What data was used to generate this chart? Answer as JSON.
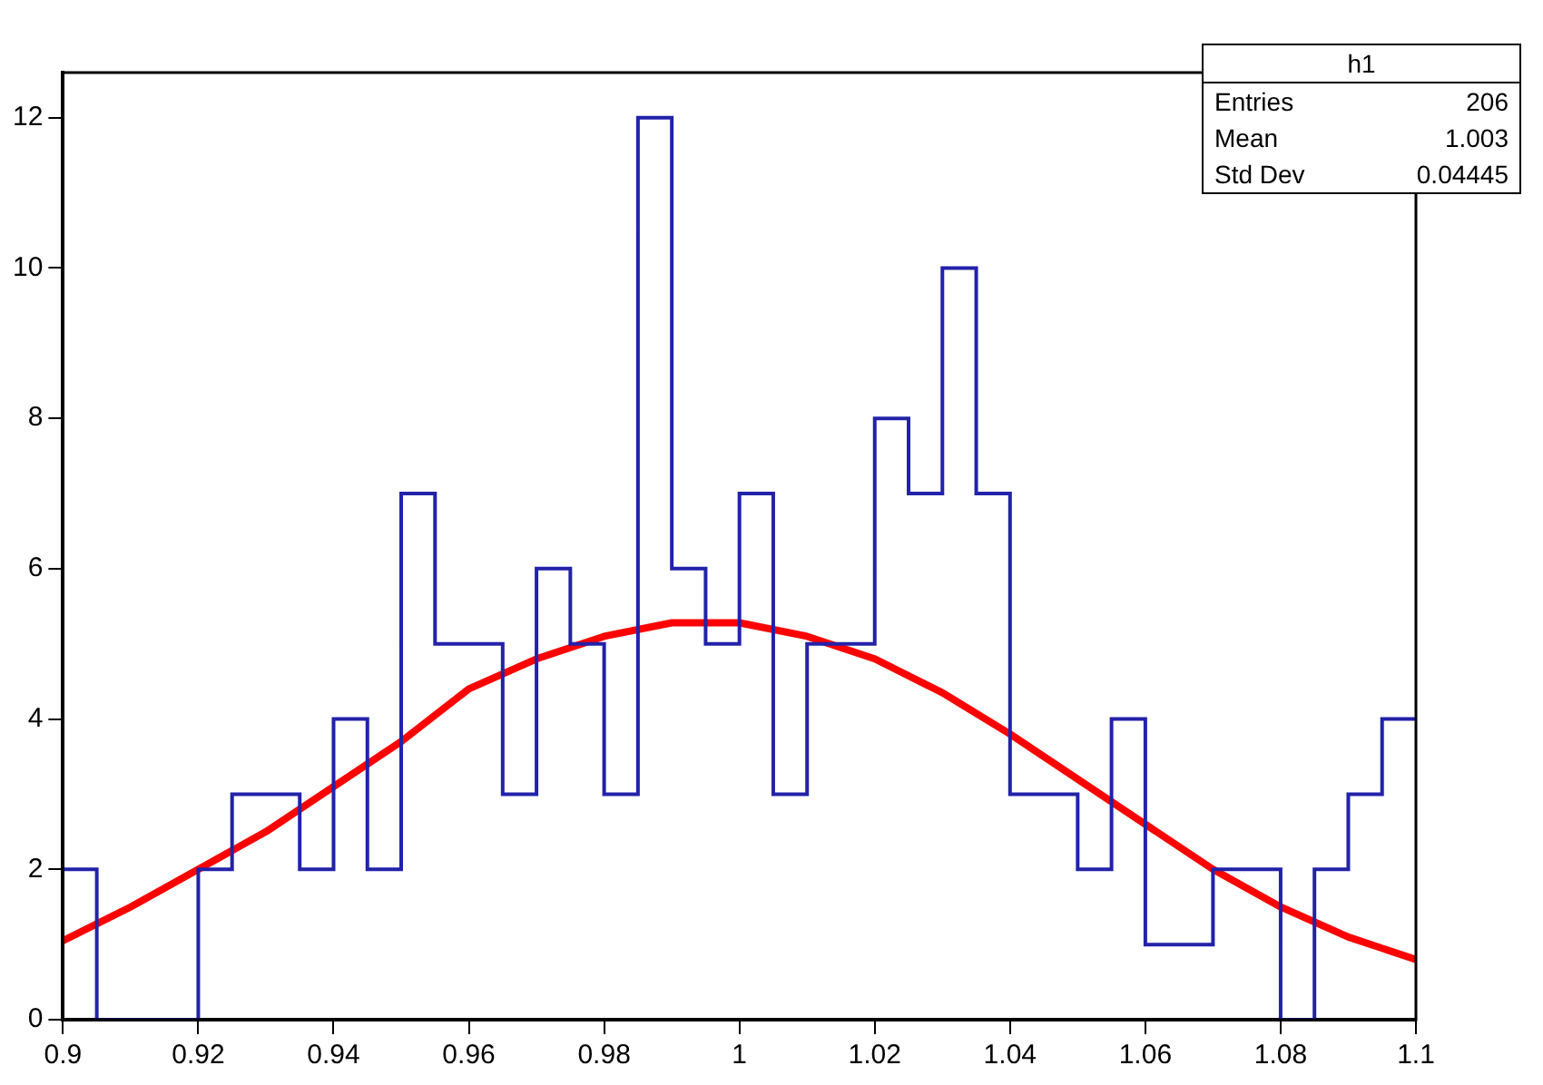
{
  "chart_data": {
    "type": "histogram",
    "bins": [
      0.9,
      0.905,
      0.91,
      0.915,
      0.92,
      0.925,
      0.93,
      0.935,
      0.94,
      0.945,
      0.95,
      0.955,
      0.96,
      0.965,
      0.97,
      0.975,
      0.98,
      0.985,
      0.99,
      0.995,
      1.0,
      1.005,
      1.01,
      1.015,
      1.02,
      1.025,
      1.03,
      1.035,
      1.04,
      1.045,
      1.05,
      1.055,
      1.06,
      1.065,
      1.07,
      1.075,
      1.08,
      1.085,
      1.09,
      1.095,
      1.1
    ],
    "series": [
      {
        "type": "histogram",
        "color": "#2222aa",
        "values": [
          2,
          0,
          0,
          0,
          2,
          3,
          3,
          2,
          4,
          2,
          7,
          5,
          5,
          3,
          6,
          5,
          3,
          12,
          6,
          5,
          7,
          3,
          5,
          5,
          8,
          7,
          10,
          7,
          3,
          3,
          2,
          4,
          1,
          1,
          2,
          2,
          0,
          2,
          3,
          4
        ]
      },
      {
        "type": "line",
        "color": "#ff0000",
        "x": [
          0.9,
          0.91,
          0.92,
          0.93,
          0.94,
          0.95,
          0.96,
          0.97,
          0.98,
          0.99,
          1.0,
          1.01,
          1.02,
          1.03,
          1.04,
          1.05,
          1.06,
          1.07,
          1.08,
          1.09,
          1.1
        ],
        "values": [
          1.05,
          1.5,
          2.0,
          2.5,
          3.1,
          3.7,
          4.4,
          4.8,
          5.1,
          5.28,
          5.28,
          5.1,
          4.8,
          4.35,
          3.8,
          3.2,
          2.6,
          2.0,
          1.5,
          1.1,
          0.8
        ]
      }
    ],
    "xlim": [
      0.9,
      1.1
    ],
    "xticks": [
      0.9,
      0.92,
      0.94,
      0.96,
      0.98,
      1,
      1.02,
      1.04,
      1.06,
      1.08,
      1.1
    ],
    "ylim": [
      0,
      12.6
    ],
    "yticks": [
      0,
      2,
      4,
      6,
      8,
      10,
      12
    ],
    "grid": false,
    "legend": false,
    "marker": "none",
    "annotations": [
      "h1",
      "Entries",
      "206",
      "Mean",
      "1.003",
      "Std Dev",
      "0.04445"
    ]
  }
}
